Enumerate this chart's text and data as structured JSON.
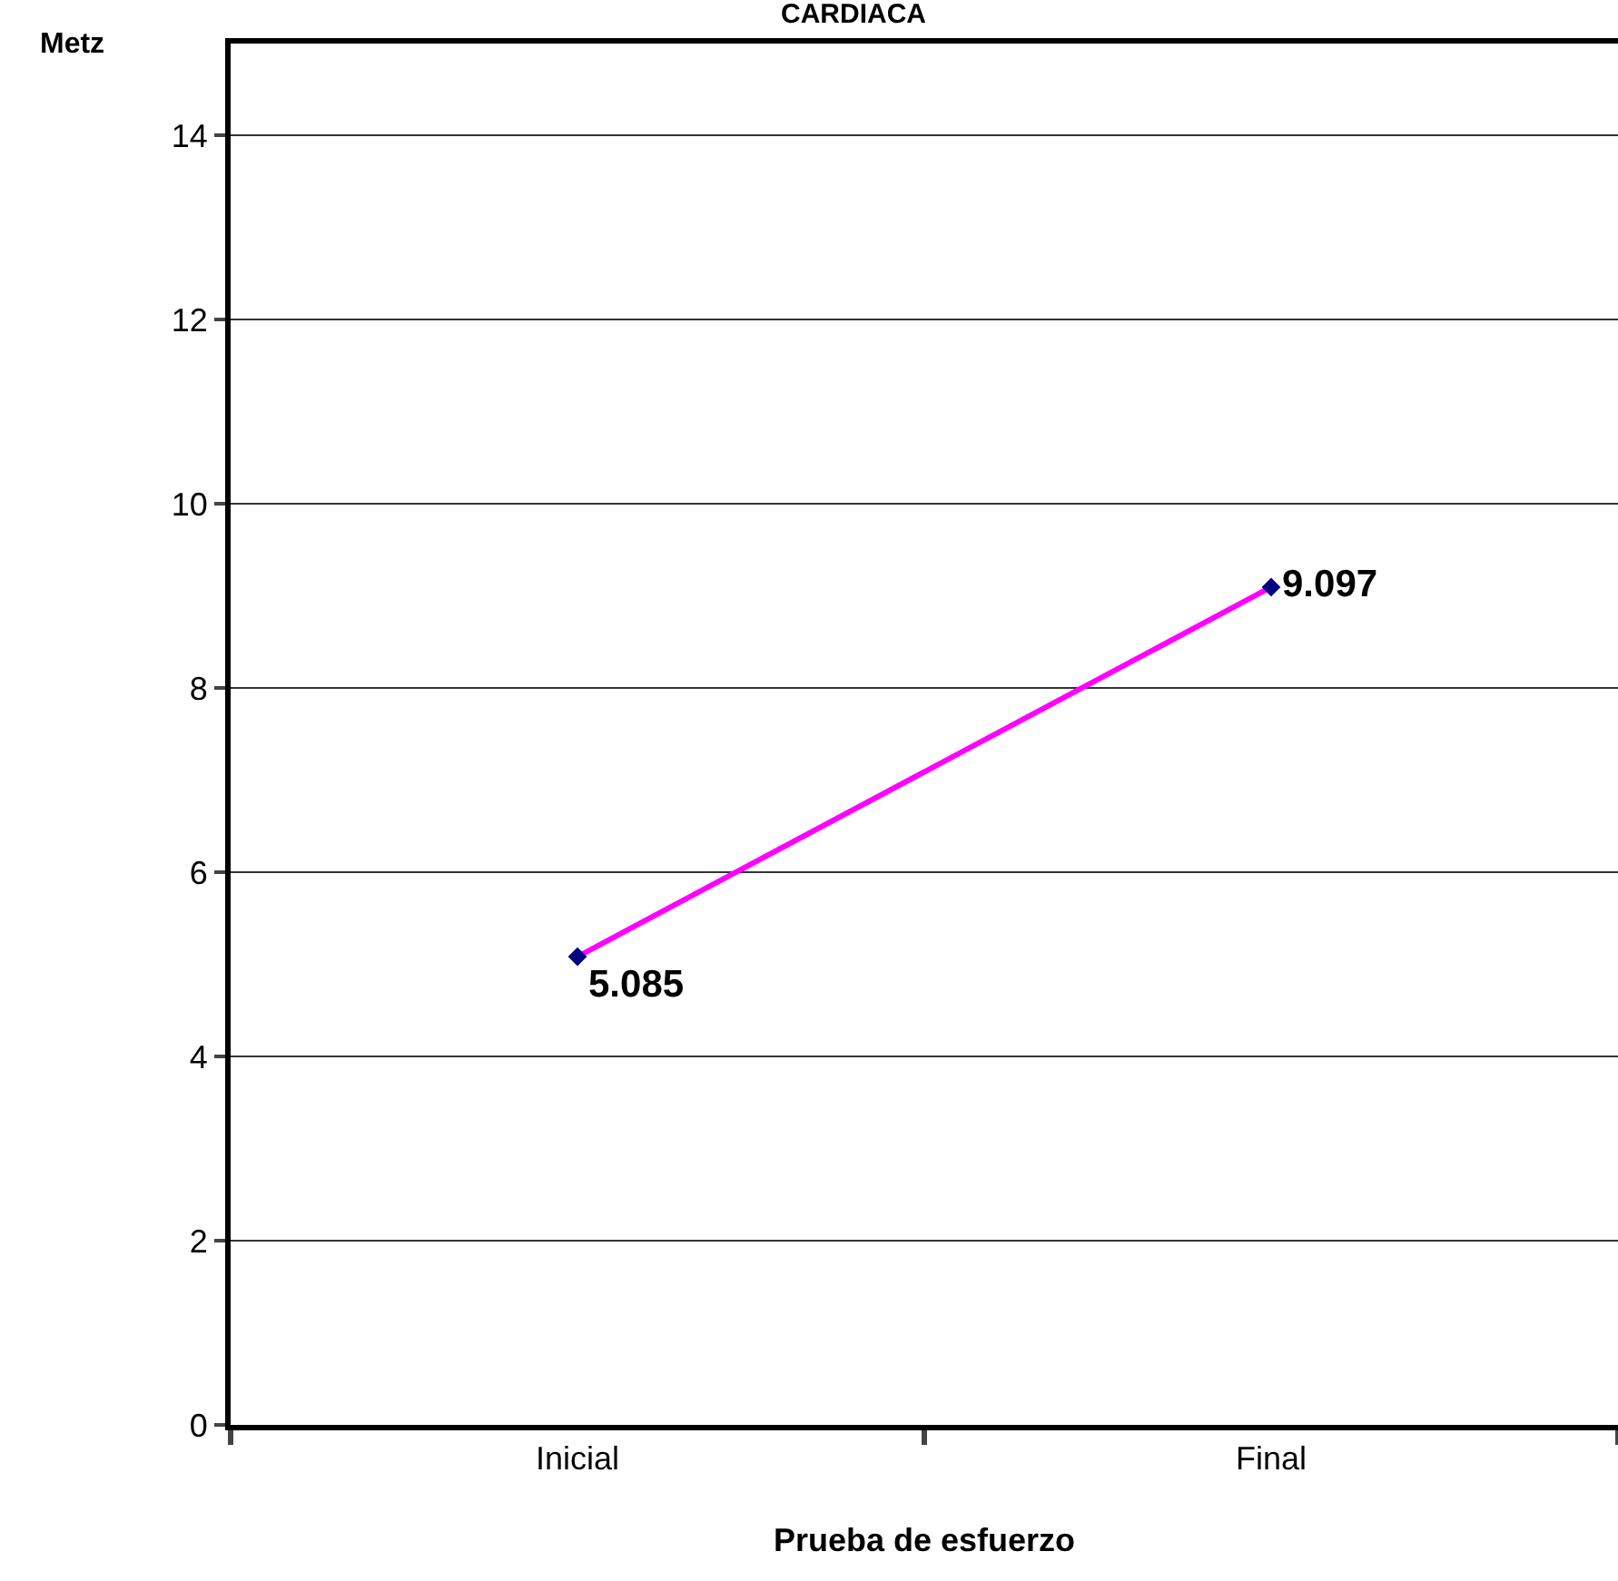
{
  "chart_data": {
    "type": "line",
    "title": "CARDIACA",
    "xlabel": "Prueba de esfuerzo",
    "ylabel": "Metz",
    "categories": [
      "Inicial",
      "Final"
    ],
    "series": [
      {
        "color": "#ff00ff",
        "values": [
          5.085,
          9.097
        ]
      }
    ],
    "ylim": [
      0,
      15
    ],
    "yticks": [
      0,
      2,
      4,
      6,
      8,
      10,
      12,
      14
    ],
    "grid": "y",
    "marker": "diamond",
    "line_style": "solid",
    "data_labels": true
  }
}
